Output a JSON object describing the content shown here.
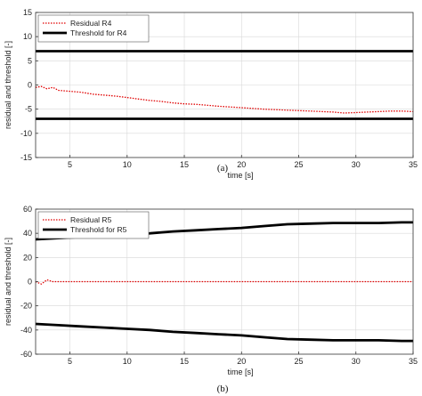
{
  "chart_data": [
    {
      "type": "line",
      "caption": "(a)",
      "xlabel": "time [s]",
      "ylabel": "residual and threshold [-]",
      "xlim": [
        2,
        35
      ],
      "ylim": [
        -15,
        15
      ],
      "xticks": [
        5,
        10,
        15,
        20,
        25,
        30,
        35
      ],
      "yticks": [
        15,
        10,
        5,
        0,
        -5,
        -10,
        -15
      ],
      "grid": true,
      "legend_position": "top-left",
      "series": [
        {
          "name": "Residual R4",
          "color": "#e00000",
          "style": "dotted",
          "x": [
            2,
            2.5,
            3,
            3.5,
            4,
            5,
            6,
            7,
            8,
            9,
            10,
            11,
            12,
            13,
            14,
            15,
            16,
            18,
            20,
            22,
            24,
            26,
            28,
            29,
            30,
            31,
            32,
            33,
            34,
            35
          ],
          "y": [
            -0.5,
            -0.3,
            -0.8,
            -0.5,
            -1.1,
            -1.3,
            -1.5,
            -1.9,
            -2.1,
            -2.3,
            -2.6,
            -2.9,
            -3.2,
            -3.4,
            -3.7,
            -3.9,
            -4.0,
            -4.4,
            -4.7,
            -5.0,
            -5.2,
            -5.4,
            -5.6,
            -5.8,
            -5.7,
            -5.6,
            -5.5,
            -5.4,
            -5.4,
            -5.5
          ]
        },
        {
          "name": "Threshold for R4",
          "color": "#000000",
          "style": "solid",
          "x": [
            2,
            35
          ],
          "y": [
            7,
            7
          ]
        },
        {
          "name": "",
          "color": "#000000",
          "style": "solid",
          "x": [
            2,
            35
          ],
          "y": [
            -7,
            -7
          ]
        }
      ]
    },
    {
      "type": "line",
      "caption": "(b)",
      "xlabel": "time [s]",
      "ylabel": "residual and threshold [-]",
      "xlim": [
        2,
        35
      ],
      "ylim": [
        -60,
        60
      ],
      "xticks": [
        5,
        10,
        15,
        20,
        25,
        30,
        35
      ],
      "yticks": [
        60,
        40,
        20,
        0,
        -20,
        -40,
        -60
      ],
      "grid": true,
      "legend_position": "top-left",
      "series": [
        {
          "name": "Residual R5",
          "color": "#e00000",
          "style": "dotted",
          "x": [
            2,
            2.5,
            3,
            3.5,
            4,
            6,
            10,
            15,
            20,
            25,
            30,
            35
          ],
          "y": [
            0,
            -2,
            1.5,
            0,
            0,
            0,
            0,
            0,
            0,
            0,
            0,
            0
          ]
        },
        {
          "name": "Threshold for R5",
          "color": "#000000",
          "style": "solid",
          "x": [
            2,
            4,
            6,
            8,
            10,
            12,
            14,
            16,
            18,
            20,
            22,
            24,
            26,
            28,
            30,
            32,
            34,
            35
          ],
          "y": [
            35,
            36,
            37,
            38,
            39,
            40,
            41.5,
            42.5,
            43.5,
            44.5,
            46,
            47.5,
            48,
            48.5,
            48.5,
            48.5,
            49,
            49
          ]
        },
        {
          "name": "",
          "color": "#000000",
          "style": "solid",
          "x": [
            2,
            4,
            6,
            8,
            10,
            12,
            14,
            16,
            18,
            20,
            22,
            24,
            26,
            28,
            30,
            32,
            34,
            35
          ],
          "y": [
            -35,
            -36,
            -37,
            -38,
            -39,
            -40,
            -41.5,
            -42.5,
            -43.5,
            -44.5,
            -46,
            -47.5,
            -48,
            -48.5,
            -48.5,
            -48.5,
            -49,
            -49
          ]
        }
      ]
    }
  ]
}
